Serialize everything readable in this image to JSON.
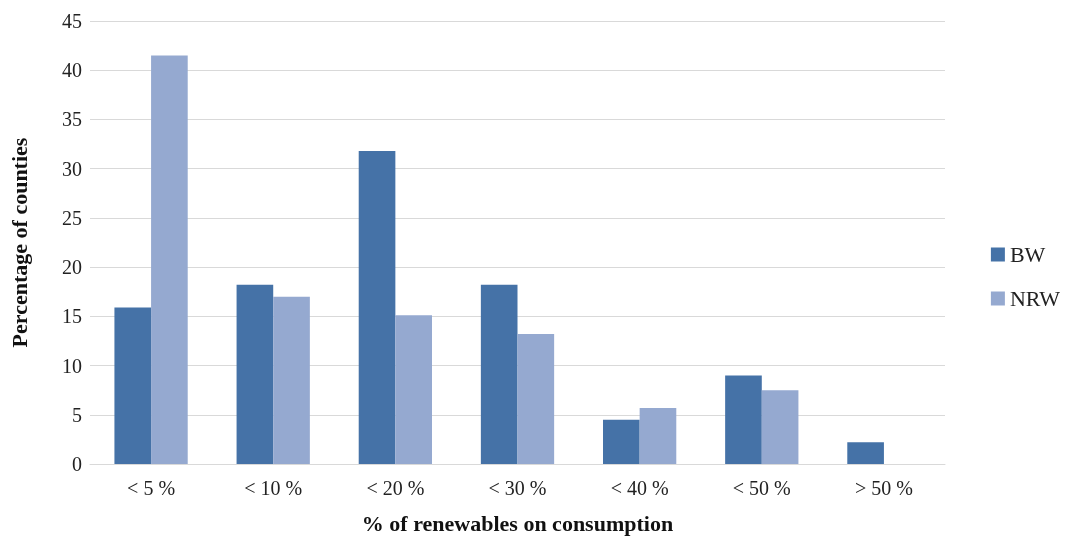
{
  "chart_data": {
    "type": "bar",
    "xlabel": "% of renewables on consumption",
    "ylabel": "Percentage of counties",
    "categories": [
      "< 5 %",
      "< 10 %",
      "< 20 %",
      "< 30 %",
      "< 40 %",
      "< 50 %",
      "> 50 %"
    ],
    "series": [
      {
        "name": "BW",
        "color": "#4572a7",
        "values": [
          15.9,
          18.2,
          31.8,
          18.2,
          4.5,
          9.0,
          2.2
        ]
      },
      {
        "name": "NRW",
        "color": "#95a9d0",
        "values": [
          41.5,
          17.0,
          15.1,
          13.2,
          5.7,
          7.5,
          0
        ]
      }
    ],
    "ylim": [
      0,
      45
    ],
    "yticks": [
      0,
      5,
      10,
      15,
      20,
      25,
      30,
      35,
      40,
      45
    ],
    "grid": "y",
    "legend": "right"
  }
}
